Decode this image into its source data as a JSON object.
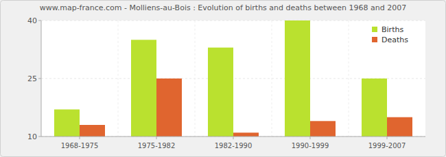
{
  "chart_data": {
    "type": "bar",
    "title": "www.map-france.com - Molliens-au-Bois : Evolution of births and deaths between 1968 and 2007",
    "categories": [
      "1968-1975",
      "1975-1982",
      "1982-1990",
      "1990-1999",
      "1999-2007"
    ],
    "series": [
      {
        "name": "Births",
        "color": "#bae12f",
        "values": [
          17,
          35,
          33,
          40,
          25
        ]
      },
      {
        "name": "Deaths",
        "color": "#e0652f",
        "values": [
          13,
          25,
          11,
          14,
          15
        ]
      }
    ],
    "ylim": [
      10,
      40
    ],
    "yticks": [
      10,
      25,
      40
    ],
    "grid": true,
    "legend": "top-right"
  }
}
